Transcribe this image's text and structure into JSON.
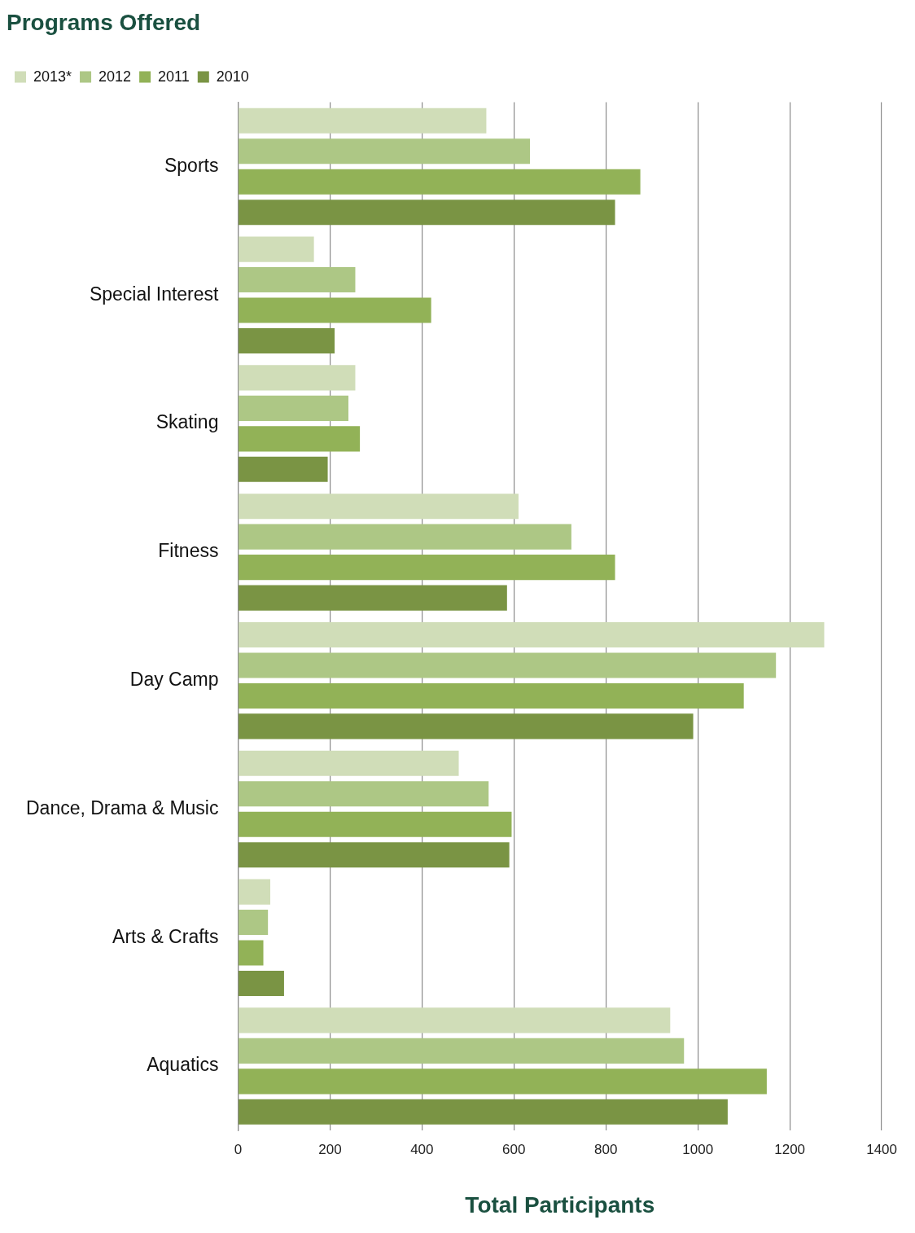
{
  "chart_data": {
    "type": "bar",
    "orientation": "horizontal",
    "title": "Programs Offered",
    "xlabel": "Total Participants",
    "categories": [
      "Sports",
      "Special Interest",
      "Skating",
      "Fitness",
      "Day Camp",
      "Dance, Drama & Music",
      "Arts & Crafts",
      "Aquatics"
    ],
    "series": [
      {
        "name": "2013*",
        "color": "#d0ddb8",
        "values": [
          540,
          165,
          255,
          610,
          1275,
          480,
          70,
          940
        ]
      },
      {
        "name": "2012",
        "color": "#adc785",
        "values": [
          635,
          255,
          240,
          725,
          1170,
          545,
          65,
          970
        ]
      },
      {
        "name": "2011",
        "color": "#92b257",
        "values": [
          875,
          420,
          265,
          820,
          1100,
          595,
          55,
          1150
        ]
      },
      {
        "name": "2010",
        "color": "#7a9444",
        "values": [
          820,
          210,
          195,
          585,
          990,
          590,
          100,
          1065
        ]
      }
    ],
    "xlim": [
      0,
      1400
    ],
    "xticks": [
      0,
      200,
      400,
      600,
      800,
      1000,
      1200,
      1400
    ],
    "grid": "x",
    "legend": "top"
  }
}
